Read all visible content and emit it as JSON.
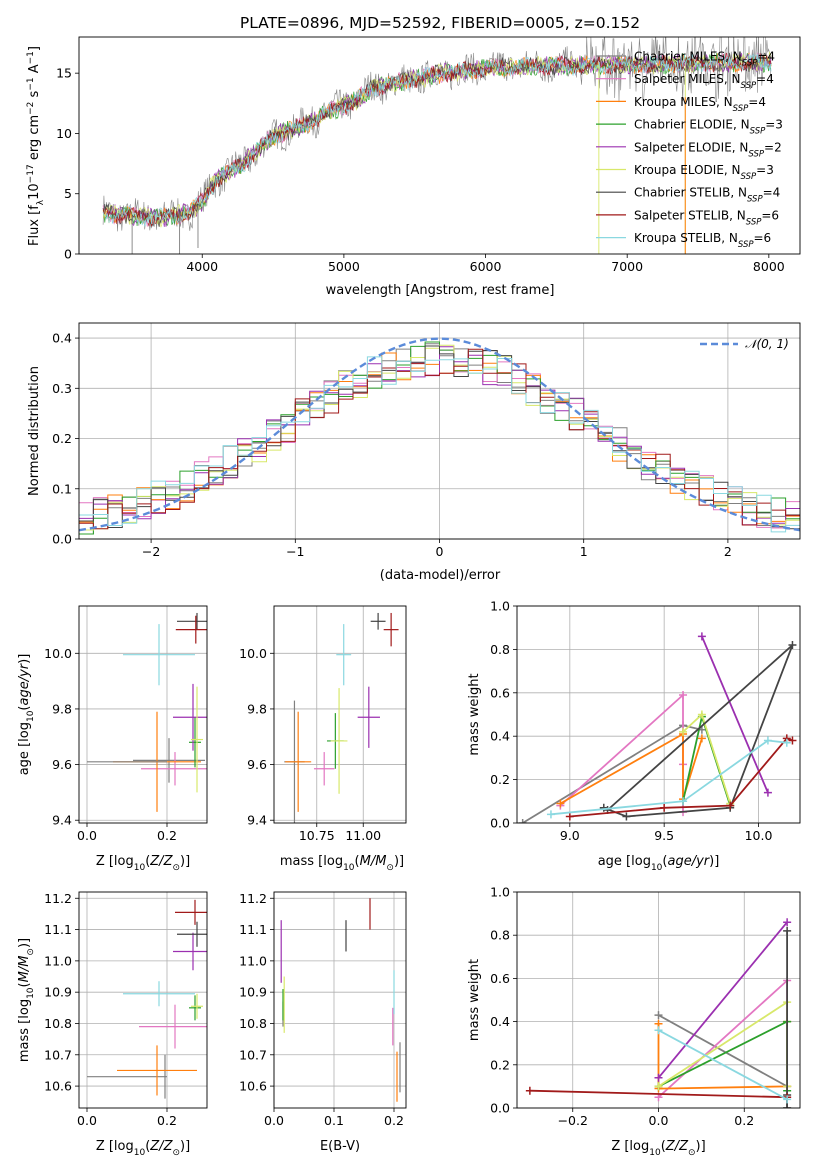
{
  "figure": {
    "title": "PLATE=0896, MJD=52592, FIBERID=0005, z=0.152"
  },
  "models": [
    {
      "name": "Chabrier MILES",
      "nssp": "4",
      "color": "#808080"
    },
    {
      "name": "Salpeter MILES",
      "nssp": "4",
      "color": "#e377c2"
    },
    {
      "name": "Kroupa MILES",
      "nssp": "4",
      "color": "#ff7f0e"
    },
    {
      "name": "Chabrier ELODIE",
      "nssp": "3",
      "color": "#2ca02c"
    },
    {
      "name": "Salpeter ELODIE",
      "nssp": "2",
      "color": "#9b30b0"
    },
    {
      "name": "Kroupa ELODIE",
      "nssp": "3",
      "color": "#d8e86a"
    },
    {
      "name": "Chabrier STELIB",
      "nssp": "4",
      "color": "#444444"
    },
    {
      "name": "Salpeter STELIB",
      "nssp": "6",
      "color": "#a11a1a"
    },
    {
      "name": "Kroupa STELIB",
      "nssp": "6",
      "color": "#8ad8e0"
    }
  ],
  "chart_data": [
    {
      "id": "spectrum",
      "type": "line",
      "xlabel": "wavelength [Angstrom, rest frame]",
      "ylabel": "Flux [f_λ10^-17 erg cm^-2 s^-1 A^-1]",
      "xlim": [
        3130,
        8220
      ],
      "ylim": [
        0,
        18
      ],
      "xticks": [
        4000,
        5000,
        6000,
        7000,
        8000
      ],
      "yticks": [
        0,
        5,
        10,
        15
      ],
      "x_range": [
        3300,
        8020
      ],
      "flux_anchors": [
        [
          3300,
          3.4
        ],
        [
          3500,
          3.2
        ],
        [
          3700,
          3.0
        ],
        [
          3900,
          3.4
        ],
        [
          4000,
          4.3
        ],
        [
          4100,
          6.2
        ],
        [
          4300,
          7.6
        ],
        [
          4500,
          9.8
        ],
        [
          4700,
          10.6
        ],
        [
          4900,
          11.8
        ],
        [
          5100,
          12.8
        ],
        [
          5200,
          13.8
        ],
        [
          5400,
          14.3
        ],
        [
          5700,
          15.0
        ],
        [
          6000,
          15.4
        ],
        [
          6300,
          15.6
        ],
        [
          6600,
          15.6
        ],
        [
          7000,
          15.7
        ],
        [
          7400,
          15.8
        ],
        [
          7800,
          15.9
        ],
        [
          8020,
          15.9
        ]
      ],
      "grid": false,
      "legend": "top-right"
    },
    {
      "id": "residuals",
      "type": "line",
      "xlabel": "(data-model)/error",
      "ylabel": "Normed distribution",
      "xlim": [
        -2.5,
        2.5
      ],
      "ylim": [
        0,
        0.43
      ],
      "xticks": [
        -2,
        -1,
        0,
        1,
        2
      ],
      "yticks": [
        0.0,
        0.1,
        0.2,
        0.3,
        0.4
      ],
      "reference_label": "𝒩(0, 1)",
      "reference_color": "#5b8bd9",
      "bin_width": 0.1,
      "grid": true,
      "legend": "top-right"
    },
    {
      "id": "age-vs-Z",
      "type": "scatter",
      "xlabel": "Z [log10(Z/Z⊙)]",
      "ylabel": "age  [log10(age/yr)]",
      "xlim": [
        -0.02,
        0.3
      ],
      "ylim": [
        9.39,
        10.17
      ],
      "xticks": [
        0.0,
        0.2
      ],
      "yticks": [
        9.4,
        9.6,
        9.8,
        10.0
      ],
      "grid": true,
      "points": [
        {
          "model": 0,
          "x": 0.205,
          "y": 9.615,
          "xerr": 0.09,
          "yerr": 0.08
        },
        {
          "model": 1,
          "x": 0.22,
          "y": 9.585,
          "xerr": 0.085,
          "yerr": 0.06
        },
        {
          "model": 2,
          "x": 0.175,
          "y": 9.61,
          "xerr": 0.11,
          "yerr": 0.18
        },
        {
          "model": 3,
          "x": 0.27,
          "y": 9.68,
          "xerr": 0.015,
          "yerr": 0.09
        },
        {
          "model": 4,
          "x": 0.265,
          "y": 9.77,
          "xerr": 0.05,
          "yerr": 0.12
        },
        {
          "model": 5,
          "x": 0.275,
          "y": 9.69,
          "xerr": 0.015,
          "yerr": 0.19
        },
        {
          "model": 6,
          "x": 0.275,
          "y": 10.115,
          "xerr": 0.05,
          "yerr": 0.03
        },
        {
          "model": 7,
          "x": 0.272,
          "y": 10.085,
          "xerr": 0.05,
          "yerr": 0.05
        },
        {
          "model": 8,
          "x": 0.18,
          "y": 9.995,
          "xerr": 0.09,
          "yerr": 0.11
        },
        {
          "model": 0,
          "x": 0.1,
          "y": 9.61,
          "xerr": 0.1,
          "yerr": 0.0
        }
      ]
    },
    {
      "id": "age-vs-mass",
      "type": "scatter",
      "xlabel": "mass [log10(M/M⊙)]",
      "ylabel": "",
      "xlim": [
        10.52,
        11.23
      ],
      "ylim": [
        9.39,
        10.17
      ],
      "xticks": [
        10.75,
        11.0
      ],
      "yticks": [
        9.4,
        9.6,
        9.8,
        10.0
      ],
      "grid": true,
      "points": [
        {
          "model": 0,
          "x": 10.63,
          "y": 9.61,
          "xerr": 0.055,
          "yerr": 0.22
        },
        {
          "model": 1,
          "x": 10.79,
          "y": 9.585,
          "xerr": 0.055,
          "yerr": 0.06
        },
        {
          "model": 2,
          "x": 10.65,
          "y": 9.61,
          "xerr": 0.07,
          "yerr": 0.18
        },
        {
          "model": 3,
          "x": 10.85,
          "y": 9.685,
          "xerr": 0.045,
          "yerr": 0.1
        },
        {
          "model": 4,
          "x": 11.03,
          "y": 9.77,
          "xerr": 0.06,
          "yerr": 0.11
        },
        {
          "model": 5,
          "x": 10.87,
          "y": 9.685,
          "xerr": 0.045,
          "yerr": 0.19
        },
        {
          "model": 6,
          "x": 11.08,
          "y": 10.115,
          "xerr": 0.04,
          "yerr": 0.03
        },
        {
          "model": 7,
          "x": 11.15,
          "y": 10.085,
          "xerr": 0.04,
          "yerr": 0.06
        },
        {
          "model": 8,
          "x": 10.895,
          "y": 9.995,
          "xerr": 0.04,
          "yerr": 0.11
        }
      ]
    },
    {
      "id": "massweight-vs-age",
      "type": "line",
      "xlabel": "age  [log10(age/yr)]",
      "ylabel": "mass weight",
      "xlim": [
        8.72,
        10.22
      ],
      "ylim": [
        0.0,
        1.0
      ],
      "xticks": [
        9.0,
        9.5,
        10.0
      ],
      "yticks": [
        0.0,
        0.2,
        0.4,
        0.6,
        0.8,
        1.0
      ],
      "grid": true,
      "series": [
        {
          "model": 0,
          "points": [
            [
              8.75,
              0.0
            ],
            [
              9.6,
              0.45
            ],
            [
              9.7,
              0.43
            ]
          ]
        },
        {
          "model": 1,
          "points": [
            [
              8.95,
              0.08
            ],
            [
              9.6,
              0.59
            ],
            [
              9.6,
              0.27
            ],
            [
              9.6,
              0.05
            ]
          ]
        },
        {
          "model": 2,
          "points": [
            [
              8.95,
              0.09
            ],
            [
              9.6,
              0.41
            ],
            [
              9.6,
              0.11
            ],
            [
              9.7,
              0.39
            ]
          ]
        },
        {
          "model": 3,
          "points": [
            [
              9.6,
              0.1
            ],
            [
              9.7,
              0.49
            ],
            [
              9.85,
              0.08
            ]
          ]
        },
        {
          "model": 4,
          "points": [
            [
              9.7,
              0.86
            ],
            [
              10.05,
              0.14
            ]
          ]
        },
        {
          "model": 5,
          "points": [
            [
              9.6,
              0.42
            ],
            [
              9.7,
              0.5
            ],
            [
              9.85,
              0.09
            ]
          ]
        },
        {
          "model": 6,
          "points": [
            [
              9.18,
              0.07
            ],
            [
              9.3,
              0.03
            ],
            [
              9.85,
              0.07
            ],
            [
              10.18,
              0.82
            ],
            [
              9.2,
              0.06
            ]
          ]
        },
        {
          "model": 7,
          "points": [
            [
              9.0,
              0.03
            ],
            [
              9.5,
              0.07
            ],
            [
              9.85,
              0.08
            ],
            [
              10.15,
              0.39
            ],
            [
              10.18,
              0.38
            ]
          ]
        },
        {
          "model": 8,
          "points": [
            [
              8.9,
              0.04
            ],
            [
              9.6,
              0.1
            ],
            [
              10.05,
              0.38
            ],
            [
              10.15,
              0.37
            ]
          ]
        }
      ]
    },
    {
      "id": "mass-vs-Z",
      "type": "scatter",
      "xlabel": "Z [log10(Z/Z⊙)]",
      "ylabel": "mass [log10(M/M⊙)]",
      "xlim": [
        -0.02,
        0.3
      ],
      "ylim": [
        10.53,
        11.22
      ],
      "xticks": [
        0.0,
        0.2
      ],
      "yticks": [
        10.6,
        10.7,
        10.8,
        10.9,
        11.0,
        11.1,
        11.2
      ],
      "grid": true,
      "points": [
        {
          "model": 0,
          "x": 0.1,
          "y": 10.63,
          "xerr": 0.1,
          "yerr": 0.0
        },
        {
          "model": 0,
          "x": 0.195,
          "y": 10.63,
          "xerr": 0.0,
          "yerr": 0.07
        },
        {
          "model": 1,
          "x": 0.22,
          "y": 10.79,
          "xerr": 0.09,
          "yerr": 0.07
        },
        {
          "model": 2,
          "x": 0.175,
          "y": 10.65,
          "xerr": 0.1,
          "yerr": 0.08
        },
        {
          "model": 3,
          "x": 0.27,
          "y": 10.85,
          "xerr": 0.015,
          "yerr": 0.04
        },
        {
          "model": 4,
          "x": 0.265,
          "y": 11.03,
          "xerr": 0.05,
          "yerr": 0.06
        },
        {
          "model": 5,
          "x": 0.275,
          "y": 10.855,
          "xerr": 0.015,
          "yerr": 0.04
        },
        {
          "model": 6,
          "x": 0.275,
          "y": 11.085,
          "xerr": 0.05,
          "yerr": 0.04
        },
        {
          "model": 7,
          "x": 0.27,
          "y": 11.155,
          "xerr": 0.05,
          "yerr": 0.04
        },
        {
          "model": 8,
          "x": 0.18,
          "y": 10.895,
          "xerr": 0.09,
          "yerr": 0.04
        }
      ]
    },
    {
      "id": "mass-vs-ebv",
      "type": "scatter",
      "xlabel": "E(B-V)",
      "ylabel": "",
      "xlim": [
        0.0,
        0.22
      ],
      "ylim": [
        10.53,
        11.22
      ],
      "xticks": [
        0.0,
        0.1,
        0.2
      ],
      "yticks": [
        10.6,
        10.7,
        10.8,
        10.9,
        11.0,
        11.1,
        11.2
      ],
      "grid": true,
      "points": [
        {
          "model": 0,
          "x": 0.015,
          "y": 10.83,
          "yerr": 0.04
        },
        {
          "model": 1,
          "x": 0.198,
          "y": 10.79,
          "yerr": 0.06
        },
        {
          "model": 2,
          "x": 0.205,
          "y": 10.63,
          "yerr": 0.08
        },
        {
          "model": 3,
          "x": 0.015,
          "y": 10.86,
          "yerr": 0.05
        },
        {
          "model": 4,
          "x": 0.012,
          "y": 11.03,
          "yerr": 0.1
        },
        {
          "model": 5,
          "x": 0.017,
          "y": 10.86,
          "yerr": 0.09
        },
        {
          "model": 6,
          "x": 0.12,
          "y": 11.08,
          "yerr": 0.05
        },
        {
          "model": 7,
          "x": 0.16,
          "y": 11.15,
          "yerr": 0.05
        },
        {
          "model": 8,
          "x": 0.2,
          "y": 10.9,
          "yerr": 0.07
        },
        {
          "model": 0,
          "x": 0.21,
          "y": 10.66,
          "yerr": 0.08
        }
      ]
    },
    {
      "id": "massweight-vs-Z",
      "type": "line",
      "xlabel": "Z [log10(Z/Z⊙)]",
      "ylabel": "mass weight",
      "xlim": [
        -0.33,
        0.33
      ],
      "ylim": [
        0.0,
        1.0
      ],
      "xticks": [
        -0.2,
        0.0,
        0.2
      ],
      "yticks": [
        0.0,
        0.2,
        0.4,
        0.6,
        0.8,
        1.0
      ],
      "grid": true,
      "series": [
        {
          "model": 0,
          "points": [
            [
              0.0,
              0.43
            ],
            [
              0.3,
              0.1
            ],
            [
              0.3,
              0.0
            ]
          ]
        },
        {
          "model": 1,
          "points": [
            [
              0.0,
              0.05
            ],
            [
              0.3,
              0.59
            ],
            [
              0.3,
              0.05
            ]
          ]
        },
        {
          "model": 2,
          "points": [
            [
              0.0,
              0.39
            ],
            [
              0.0,
              0.09
            ],
            [
              0.3,
              0.1
            ],
            [
              0.3,
              0.4
            ]
          ]
        },
        {
          "model": 3,
          "points": [
            [
              0.0,
              0.1
            ],
            [
              0.3,
              0.4
            ],
            [
              0.3,
              0.08
            ]
          ]
        },
        {
          "model": 4,
          "points": [
            [
              0.0,
              0.14
            ],
            [
              0.3,
              0.86
            ]
          ]
        },
        {
          "model": 5,
          "points": [
            [
              0.0,
              0.1
            ],
            [
              0.3,
              0.49
            ],
            [
              0.3,
              0.1
            ]
          ]
        },
        {
          "model": 6,
          "points": [
            [
              0.3,
              0.82
            ],
            [
              0.3,
              0.0
            ],
            [
              0.3,
              0.06
            ]
          ]
        },
        {
          "model": 7,
          "points": [
            [
              -0.3,
              0.08
            ],
            [
              0.3,
              0.05
            ]
          ]
        },
        {
          "model": 8,
          "points": [
            [
              0.0,
              0.36
            ],
            [
              0.3,
              0.04
            ]
          ]
        }
      ]
    }
  ]
}
